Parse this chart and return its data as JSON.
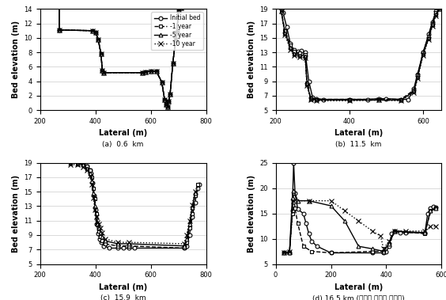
{
  "subplot_a": {
    "title": "(a)  0.6  km",
    "xlim": [
      200,
      800
    ],
    "ylim": [
      0,
      14
    ],
    "yticks": [
      0,
      2,
      4,
      6,
      8,
      10,
      12,
      14
    ],
    "xticks": [
      200,
      400,
      600,
      800
    ],
    "initial": [
      [
        270,
        11.1
      ],
      [
        270,
        14.5
      ],
      [
        270,
        11.1
      ],
      [
        390,
        11.0
      ],
      [
        400,
        10.8
      ],
      [
        410,
        9.8
      ],
      [
        420,
        7.8
      ],
      [
        425,
        5.5
      ],
      [
        430,
        5.2
      ],
      [
        570,
        5.2
      ],
      [
        580,
        5.3
      ],
      [
        600,
        5.4
      ],
      [
        620,
        5.4
      ],
      [
        640,
        3.9
      ],
      [
        650,
        1.5
      ],
      [
        655,
        0.8
      ],
      [
        660,
        0.5
      ],
      [
        665,
        1.2
      ],
      [
        670,
        2.2
      ],
      [
        680,
        6.5
      ],
      [
        690,
        9.8
      ],
      [
        695,
        10.8
      ],
      [
        700,
        13.8
      ],
      [
        710,
        14.2
      ]
    ],
    "yr1": [
      [
        270,
        11.1
      ],
      [
        390,
        11.0
      ],
      [
        400,
        10.8
      ],
      [
        410,
        9.8
      ],
      [
        420,
        7.8
      ],
      [
        425,
        5.5
      ],
      [
        430,
        5.2
      ],
      [
        570,
        5.2
      ],
      [
        580,
        5.3
      ],
      [
        600,
        5.4
      ],
      [
        620,
        5.4
      ],
      [
        640,
        3.9
      ],
      [
        650,
        1.5
      ],
      [
        655,
        0.8
      ],
      [
        660,
        0.5
      ],
      [
        665,
        1.2
      ],
      [
        670,
        2.2
      ],
      [
        680,
        6.5
      ],
      [
        690,
        9.8
      ],
      [
        695,
        10.8
      ],
      [
        700,
        13.8
      ],
      [
        710,
        14.2
      ]
    ],
    "yr5": [
      [
        270,
        11.1
      ],
      [
        390,
        11.0
      ],
      [
        400,
        10.8
      ],
      [
        410,
        9.8
      ],
      [
        420,
        7.8
      ],
      [
        425,
        5.5
      ],
      [
        430,
        5.2
      ],
      [
        570,
        5.2
      ],
      [
        580,
        5.3
      ],
      [
        600,
        5.4
      ],
      [
        620,
        5.4
      ],
      [
        640,
        3.9
      ],
      [
        650,
        1.5
      ],
      [
        655,
        0.8
      ],
      [
        660,
        0.5
      ],
      [
        665,
        1.2
      ],
      [
        670,
        2.2
      ],
      [
        680,
        6.5
      ],
      [
        690,
        9.8
      ],
      [
        695,
        10.8
      ],
      [
        700,
        13.8
      ],
      [
        710,
        14.2
      ]
    ],
    "yr10": [
      [
        270,
        11.1
      ],
      [
        390,
        11.0
      ],
      [
        400,
        10.8
      ],
      [
        410,
        9.8
      ],
      [
        420,
        7.8
      ],
      [
        425,
        5.5
      ],
      [
        430,
        5.2
      ],
      [
        570,
        5.2
      ],
      [
        580,
        5.3
      ],
      [
        600,
        5.4
      ],
      [
        620,
        5.4
      ],
      [
        640,
        3.9
      ],
      [
        650,
        1.5
      ],
      [
        655,
        0.8
      ],
      [
        660,
        0.5
      ],
      [
        665,
        1.2
      ],
      [
        670,
        2.2
      ],
      [
        680,
        6.5
      ],
      [
        690,
        9.8
      ],
      [
        695,
        10.8
      ],
      [
        700,
        13.8
      ],
      [
        710,
        14.2
      ]
    ]
  },
  "subplot_b": {
    "title": "(b)  11.5  km",
    "xlim": [
      200,
      650
    ],
    "ylim": [
      5,
      19
    ],
    "yticks": [
      5,
      7,
      9,
      11,
      13,
      15,
      17,
      19
    ],
    "xticks": [
      200,
      400,
      600
    ],
    "initial": [
      [
        215,
        19.0
      ],
      [
        220,
        18.5
      ],
      [
        230,
        16.5
      ],
      [
        240,
        14.2
      ],
      [
        250,
        13.3
      ],
      [
        260,
        13.1
      ],
      [
        270,
        13.2
      ],
      [
        280,
        13.0
      ],
      [
        290,
        9.0
      ],
      [
        300,
        6.8
      ],
      [
        310,
        6.6
      ],
      [
        330,
        6.5
      ],
      [
        400,
        6.5
      ],
      [
        450,
        6.5
      ],
      [
        480,
        6.6
      ],
      [
        500,
        6.6
      ],
      [
        540,
        6.5
      ],
      [
        560,
        6.5
      ],
      [
        575,
        8.0
      ],
      [
        585,
        10.0
      ],
      [
        600,
        13.0
      ],
      [
        615,
        15.5
      ],
      [
        625,
        17.2
      ],
      [
        635,
        18.7
      ],
      [
        645,
        19.0
      ]
    ],
    "yr1": [
      [
        215,
        18.8
      ],
      [
        225,
        16.0
      ],
      [
        240,
        14.0
      ],
      [
        250,
        13.1
      ],
      [
        265,
        12.9
      ],
      [
        280,
        12.7
      ],
      [
        285,
        8.8
      ],
      [
        295,
        6.7
      ],
      [
        310,
        6.5
      ],
      [
        400,
        6.5
      ],
      [
        480,
        6.5
      ],
      [
        540,
        6.5
      ],
      [
        575,
        7.8
      ],
      [
        585,
        9.8
      ],
      [
        600,
        13.0
      ],
      [
        615,
        15.2
      ],
      [
        625,
        17.0
      ],
      [
        635,
        18.5
      ],
      [
        645,
        19.0
      ]
    ],
    "yr5": [
      [
        215,
        18.7
      ],
      [
        225,
        15.7
      ],
      [
        240,
        13.7
      ],
      [
        250,
        12.8
      ],
      [
        265,
        12.6
      ],
      [
        280,
        12.5
      ],
      [
        285,
        8.6
      ],
      [
        295,
        6.6
      ],
      [
        310,
        6.4
      ],
      [
        400,
        6.4
      ],
      [
        480,
        6.4
      ],
      [
        540,
        6.4
      ],
      [
        575,
        7.6
      ],
      [
        585,
        9.6
      ],
      [
        600,
        12.8
      ],
      [
        615,
        15.0
      ],
      [
        625,
        16.8
      ],
      [
        635,
        18.3
      ],
      [
        645,
        19.0
      ]
    ],
    "yr10": [
      [
        215,
        18.7
      ],
      [
        225,
        15.4
      ],
      [
        240,
        13.4
      ],
      [
        250,
        12.6
      ],
      [
        265,
        12.4
      ],
      [
        280,
        12.2
      ],
      [
        285,
        8.4
      ],
      [
        295,
        6.5
      ],
      [
        310,
        6.3
      ],
      [
        400,
        6.3
      ],
      [
        480,
        6.4
      ],
      [
        540,
        6.3
      ],
      [
        575,
        7.4
      ],
      [
        585,
        9.4
      ],
      [
        600,
        12.6
      ],
      [
        615,
        14.8
      ],
      [
        625,
        16.6
      ],
      [
        635,
        18.1
      ],
      [
        645,
        19.0
      ]
    ]
  },
  "subplot_c": {
    "title": "(c)  15.9  km",
    "xlim": [
      200,
      800
    ],
    "ylim": [
      5,
      19
    ],
    "yticks": [
      5,
      7,
      9,
      11,
      13,
      15,
      17,
      19
    ],
    "xticks": [
      200,
      400,
      600,
      800
    ],
    "initial": [
      [
        310,
        19.2
      ],
      [
        340,
        19.2
      ],
      [
        355,
        19.0
      ],
      [
        370,
        18.5
      ],
      [
        380,
        18.0
      ],
      [
        385,
        17.5
      ],
      [
        390,
        16.2
      ],
      [
        395,
        14.5
      ],
      [
        400,
        12.5
      ],
      [
        405,
        10.5
      ],
      [
        410,
        9.2
      ],
      [
        415,
        8.5
      ],
      [
        420,
        8.0
      ],
      [
        430,
        7.5
      ],
      [
        450,
        7.2
      ],
      [
        480,
        7.2
      ],
      [
        500,
        7.2
      ],
      [
        520,
        7.2
      ],
      [
        540,
        7.2
      ],
      [
        720,
        7.2
      ],
      [
        730,
        7.5
      ],
      [
        740,
        9.0
      ],
      [
        750,
        11.5
      ],
      [
        760,
        13.5
      ],
      [
        770,
        15.5
      ],
      [
        775,
        16.0
      ]
    ],
    "yr1": [
      [
        310,
        19.2
      ],
      [
        335,
        19.1
      ],
      [
        355,
        19.0
      ],
      [
        370,
        18.5
      ],
      [
        380,
        18.0
      ],
      [
        388,
        17.0
      ],
      [
        393,
        15.5
      ],
      [
        398,
        14.0
      ],
      [
        403,
        12.0
      ],
      [
        408,
        10.5
      ],
      [
        413,
        9.5
      ],
      [
        418,
        8.8
      ],
      [
        425,
        8.2
      ],
      [
        435,
        7.8
      ],
      [
        480,
        7.5
      ],
      [
        520,
        7.5
      ],
      [
        720,
        7.2
      ],
      [
        730,
        8.0
      ],
      [
        740,
        10.0
      ],
      [
        750,
        12.0
      ],
      [
        760,
        14.5
      ],
      [
        770,
        16.0
      ]
    ],
    "yr5": [
      [
        310,
        19.0
      ],
      [
        335,
        18.9
      ],
      [
        355,
        18.7
      ],
      [
        370,
        18.2
      ],
      [
        380,
        17.5
      ],
      [
        388,
        16.5
      ],
      [
        393,
        14.8
      ],
      [
        398,
        13.0
      ],
      [
        403,
        11.5
      ],
      [
        408,
        10.5
      ],
      [
        413,
        10.0
      ],
      [
        418,
        9.3
      ],
      [
        425,
        8.8
      ],
      [
        435,
        8.2
      ],
      [
        480,
        7.8
      ],
      [
        520,
        7.8
      ],
      [
        720,
        7.5
      ],
      [
        730,
        8.5
      ],
      [
        740,
        10.5
      ],
      [
        750,
        12.8
      ],
      [
        760,
        14.8
      ]
    ],
    "yr10": [
      [
        310,
        18.8
      ],
      [
        335,
        18.7
      ],
      [
        355,
        18.4
      ],
      [
        370,
        18.0
      ],
      [
        380,
        17.2
      ],
      [
        388,
        16.0
      ],
      [
        393,
        14.2
      ],
      [
        398,
        12.5
      ],
      [
        403,
        11.5
      ],
      [
        408,
        10.8
      ],
      [
        413,
        10.5
      ],
      [
        418,
        10.0
      ],
      [
        425,
        9.3
      ],
      [
        435,
        8.5
      ],
      [
        480,
        8.0
      ],
      [
        520,
        8.0
      ],
      [
        720,
        7.8
      ],
      [
        730,
        9.0
      ],
      [
        740,
        11.0
      ],
      [
        750,
        13.2
      ],
      [
        760,
        15.0
      ]
    ]
  },
  "subplot_d": {
    "title": "(d) 16.5 km (금호강 합류부 직하류)",
    "xlim": [
      0,
      600
    ],
    "ylim": [
      5,
      25
    ],
    "yticks": [
      5,
      10,
      15,
      20,
      25
    ],
    "xticks": [
      0,
      200,
      400,
      600
    ],
    "initial": [
      [
        30,
        7.2
      ],
      [
        50,
        7.2
      ],
      [
        60,
        15.5
      ],
      [
        65,
        25.0
      ],
      [
        70,
        19.0
      ],
      [
        80,
        15.8
      ],
      [
        100,
        15.0
      ],
      [
        110,
        13.0
      ],
      [
        120,
        11.0
      ],
      [
        130,
        9.5
      ],
      [
        150,
        8.5
      ],
      [
        200,
        7.2
      ],
      [
        350,
        7.2
      ],
      [
        390,
        7.2
      ],
      [
        400,
        7.5
      ],
      [
        410,
        8.5
      ],
      [
        420,
        11.0
      ],
      [
        430,
        11.5
      ],
      [
        450,
        11.2
      ],
      [
        470,
        11.2
      ],
      [
        540,
        11.2
      ],
      [
        550,
        15.0
      ],
      [
        560,
        16.0
      ],
      [
        570,
        16.3
      ],
      [
        580,
        16.2
      ]
    ],
    "yr1": [
      [
        30,
        7.2
      ],
      [
        50,
        7.2
      ],
      [
        60,
        15.0
      ],
      [
        65,
        19.0
      ],
      [
        70,
        16.0
      ],
      [
        80,
        13.0
      ],
      [
        100,
        8.5
      ],
      [
        130,
        7.5
      ],
      [
        200,
        7.2
      ],
      [
        350,
        7.5
      ],
      [
        390,
        7.5
      ],
      [
        410,
        9.0
      ],
      [
        430,
        11.5
      ],
      [
        540,
        11.0
      ],
      [
        560,
        15.5
      ],
      [
        580,
        16.0
      ]
    ],
    "yr5": [
      [
        30,
        7.2
      ],
      [
        50,
        7.2
      ],
      [
        60,
        18.0
      ],
      [
        65,
        19.5
      ],
      [
        80,
        17.5
      ],
      [
        120,
        17.5
      ],
      [
        200,
        16.5
      ],
      [
        250,
        13.5
      ],
      [
        300,
        8.5
      ],
      [
        350,
        8.0
      ],
      [
        390,
        7.5
      ],
      [
        410,
        9.0
      ],
      [
        430,
        11.5
      ],
      [
        540,
        11.2
      ],
      [
        560,
        15.5
      ],
      [
        580,
        16.0
      ]
    ],
    "yr10": [
      [
        30,
        7.2
      ],
      [
        50,
        7.5
      ],
      [
        65,
        17.5
      ],
      [
        120,
        17.5
      ],
      [
        200,
        17.5
      ],
      [
        250,
        15.5
      ],
      [
        300,
        13.5
      ],
      [
        350,
        11.5
      ],
      [
        380,
        10.5
      ],
      [
        390,
        8.0
      ],
      [
        410,
        9.5
      ],
      [
        430,
        11.5
      ],
      [
        470,
        11.5
      ],
      [
        540,
        11.5
      ],
      [
        560,
        12.5
      ],
      [
        580,
        12.5
      ]
    ]
  },
  "series_styles": {
    "initial": {
      "color": "#000000",
      "linestyle": "-",
      "marker": "o",
      "markersize": 3.5,
      "linewidth": 1.0
    },
    "yr1": {
      "color": "#000000",
      "linestyle": "--",
      "marker": "s",
      "markersize": 3.5,
      "linewidth": 1.0
    },
    "yr5": {
      "color": "#000000",
      "linestyle": "-",
      "marker": "^",
      "markersize": 3.5,
      "linewidth": 1.0
    },
    "yr10": {
      "color": "#000000",
      "linestyle": ":",
      "marker": "x",
      "markersize": 4.5,
      "linewidth": 1.0
    }
  },
  "legend_labels": [
    "Initial bed",
    "-1 year",
    "-5 year",
    "-10 year"
  ],
  "xlabel": "Lateral (m)",
  "ylabel": "Bed elevation (m)"
}
